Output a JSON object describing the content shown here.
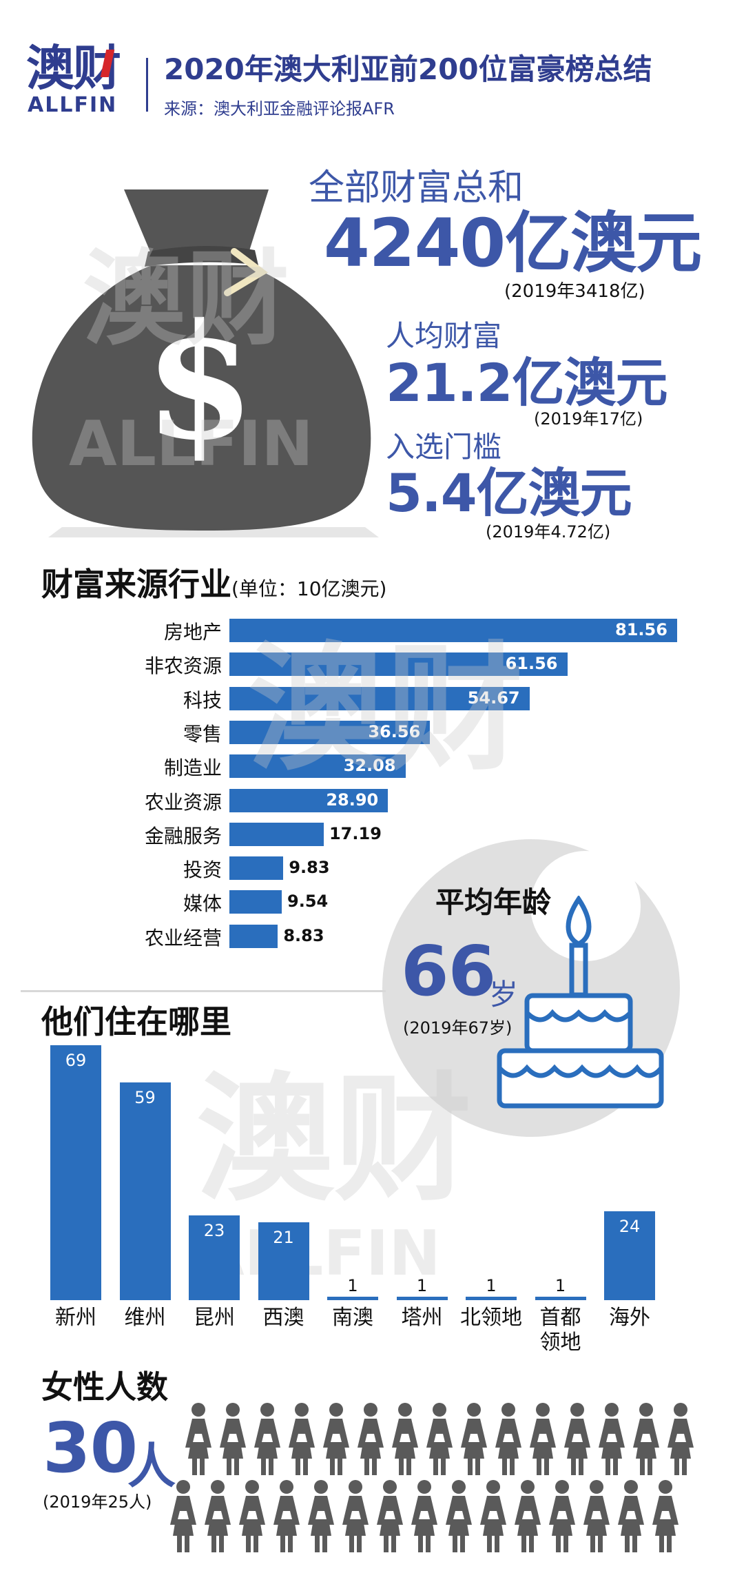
{
  "header": {
    "logo_cn": "澳财",
    "logo_en": "ALLFIN",
    "title": "2020年澳大利亚前200位富豪榜总结",
    "source": "来源：澳大利亚金融评论报AFR"
  },
  "wealth": {
    "total_label": "全部财富总和",
    "total_value": "4240亿澳元",
    "total_prev": "(2019年3418亿)",
    "avg_label": "人均财富",
    "avg_value": "21.2亿澳元",
    "avg_prev": "(2019年17亿)",
    "threshold_label": "入选门槛",
    "threshold_value": "5.4亿澳元",
    "threshold_prev": "(2019年4.72亿)",
    "bag_symbol": "$"
  },
  "industry": {
    "title": "财富来源行业",
    "unit": "(单位：10亿澳元)"
  },
  "age": {
    "title": "平均年龄",
    "value": "66",
    "unit": "岁",
    "prev": "(2019年67岁)"
  },
  "residence": {
    "title": "他们住在哪里"
  },
  "female": {
    "title": "女性人数",
    "value": "30",
    "unit": "人",
    "prev": "(2019年25人)"
  },
  "watermark": {
    "cn": "澳财",
    "en": "ALLFIN"
  },
  "colors": {
    "brand": "#2f3d8f",
    "accent_blue": "#3d57a8",
    "bar_blue": "#2a6ebd",
    "bag_gray": "#555555",
    "circle_gray": "#e0e0e0",
    "person_gray": "#5a5a5a"
  },
  "chart_data": [
    {
      "type": "bar",
      "orientation": "horizontal",
      "title": "财富来源行业",
      "unit": "(单位：10亿澳元)",
      "categories": [
        "房地产",
        "非农资源",
        "科技",
        "零售",
        "制造业",
        "农业资源",
        "金融服务",
        "投资",
        "媒体",
        "农业经营"
      ],
      "values": [
        81.56,
        61.56,
        54.67,
        36.56,
        32.08,
        28.9,
        17.19,
        9.83,
        9.54,
        8.83
      ],
      "value_labels": [
        "81.56",
        "61.56",
        "54.67",
        "36.56",
        "32.08",
        "28.90",
        "17.19",
        "9.83",
        "9.54",
        "8.83"
      ],
      "xlim": [
        0,
        81.56
      ]
    },
    {
      "type": "bar",
      "orientation": "vertical",
      "title": "他们住在哪里",
      "categories": [
        "新州",
        "维州",
        "昆州",
        "西澳",
        "南澳",
        "塔州",
        "北领地",
        "首都\n领地",
        "海外"
      ],
      "values": [
        69,
        59,
        23,
        21,
        1,
        1,
        1,
        1,
        24
      ],
      "ylim": [
        0,
        69
      ]
    }
  ]
}
